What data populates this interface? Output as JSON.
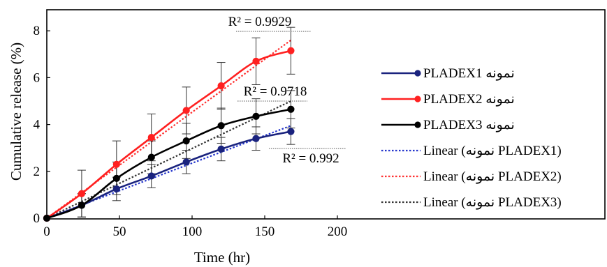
{
  "chart_data": {
    "type": "line",
    "xlabel": "Time (hr)",
    "ylabel": "Cumulative release (%)",
    "xlim": [
      0,
      200
    ],
    "ylim": [
      0,
      9
    ],
    "xticks": [
      "0",
      "50",
      "100",
      "150",
      "200"
    ],
    "yticks": [
      "0",
      "2",
      "4",
      "6",
      "8"
    ],
    "grid": false,
    "legend_position": "right",
    "x": [
      0,
      24,
      48,
      72,
      96,
      120,
      144,
      168
    ],
    "series": [
      {
        "name": "PLADEX1 نمونه",
        "color": "#1a237e",
        "values": [
          0,
          0.55,
          1.25,
          1.8,
          2.4,
          2.95,
          3.4,
          3.7
        ],
        "errors": [
          0,
          0.5,
          0.5,
          0.5,
          0.5,
          0.5,
          0.5,
          0.55
        ]
      },
      {
        "name": "PLADEX2 نمونه",
        "color": "#ff2020",
        "values": [
          0,
          1.05,
          2.3,
          3.45,
          4.6,
          5.65,
          6.7,
          7.15
        ],
        "errors": [
          0,
          1.0,
          1.0,
          1.0,
          1.0,
          1.0,
          1.0,
          1.0
        ]
      },
      {
        "name": "PLADEX3 نمونه",
        "color": "#000000",
        "values": [
          0,
          0.55,
          1.7,
          2.6,
          3.3,
          3.95,
          4.35,
          4.65
        ],
        "errors": [
          0,
          0.5,
          0.7,
          0.7,
          0.75,
          0.75,
          0.75,
          0.8
        ]
      }
    ],
    "linear_fits": [
      {
        "name": "Linear (نمونه PLADEX1)",
        "color": "#2233cc",
        "x": [
          0,
          168
        ],
        "y": [
          0,
          3.95
        ],
        "r2_label": "R² = 0.992"
      },
      {
        "name": "Linear (نمونه PLADEX2)",
        "color": "#ff3030",
        "x": [
          0,
          168
        ],
        "y": [
          0,
          7.6
        ],
        "r2_label": "R² = 0.9929"
      },
      {
        "name": "Linear (نمونه PLADEX3)",
        "color": "#333333",
        "x": [
          0,
          168
        ],
        "y": [
          0,
          5.0
        ],
        "r2_label": "R² = 0.9718"
      }
    ]
  }
}
